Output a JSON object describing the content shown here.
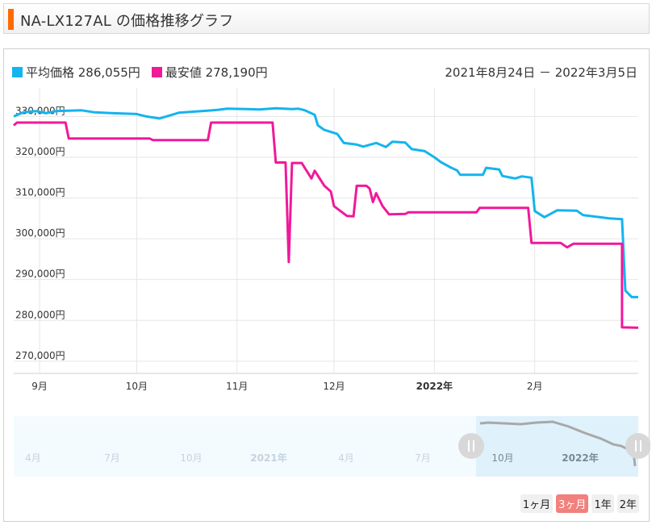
{
  "header": {
    "title": "NA-LX127AL の価格推移グラフ",
    "accent": "#ff6a00"
  },
  "legend": {
    "avg": {
      "label": "平均価格 286,055円",
      "color": "#14b4ee"
    },
    "min": {
      "label": "最安値 278,190円",
      "color": "#f0199a"
    }
  },
  "date_range": "2021年8月24日 － 2022年3月5日",
  "periods": [
    {
      "label": "1ヶ月",
      "active": false
    },
    {
      "label": "3ヶ月",
      "active": true
    },
    {
      "label": "1年",
      "active": false
    },
    {
      "label": "2年",
      "active": false
    }
  ],
  "navigator": {
    "labels": [
      "4月",
      "7月",
      "10月",
      "2021年",
      "4月",
      "7月",
      "10月",
      "2022年"
    ],
    "handle_icon": "pause-handle-icon"
  },
  "chart_data": {
    "type": "line",
    "x_start": "2021-08-24",
    "x_end": "2022-03-05",
    "ylim": [
      267000,
      337000
    ],
    "y_ticks": [
      270000,
      280000,
      290000,
      300000,
      310000,
      320000,
      330000
    ],
    "y_tick_labels": [
      "270,000円",
      "280,000円",
      "290,000円",
      "300,000円",
      "310,000円",
      "320,000円",
      "330,000円"
    ],
    "x_ticks": [
      {
        "date": "2021-09-01",
        "label": "9月",
        "bold": false
      },
      {
        "date": "2021-10-01",
        "label": "10月",
        "bold": false
      },
      {
        "date": "2021-11-01",
        "label": "11月",
        "bold": false
      },
      {
        "date": "2021-12-01",
        "label": "12月",
        "bold": false
      },
      {
        "date": "2022-01-01",
        "label": "2022年",
        "bold": true
      },
      {
        "date": "2022-02-01",
        "label": "2月",
        "bold": false
      }
    ],
    "series": [
      {
        "name": "平均価格",
        "color": "#14b4ee",
        "points": [
          [
            "2021-08-24",
            330000
          ],
          [
            "2021-08-27",
            331000
          ],
          [
            "2021-08-31",
            331300
          ],
          [
            "2021-09-03",
            330800
          ],
          [
            "2021-09-06",
            331300
          ],
          [
            "2021-09-14",
            331500
          ],
          [
            "2021-09-18",
            331000
          ],
          [
            "2021-09-24",
            330800
          ],
          [
            "2021-10-01",
            330600
          ],
          [
            "2021-10-04",
            330000
          ],
          [
            "2021-10-08",
            329500
          ],
          [
            "2021-10-11",
            330200
          ],
          [
            "2021-10-14",
            330900
          ],
          [
            "2021-10-21",
            331300
          ],
          [
            "2021-10-26",
            331600
          ],
          [
            "2021-10-29",
            331900
          ],
          [
            "2021-11-04",
            331800
          ],
          [
            "2021-11-08",
            331700
          ],
          [
            "2021-11-13",
            332000
          ],
          [
            "2021-11-18",
            331800
          ],
          [
            "2021-11-20",
            331900
          ],
          [
            "2021-11-22",
            331500
          ],
          [
            "2021-11-25",
            330400
          ],
          [
            "2021-11-26",
            327800
          ],
          [
            "2021-11-28",
            326700
          ],
          [
            "2021-12-02",
            325700
          ],
          [
            "2021-12-04",
            323500
          ],
          [
            "2021-12-08",
            323100
          ],
          [
            "2021-12-10",
            322600
          ],
          [
            "2021-12-14",
            323500
          ],
          [
            "2021-12-17",
            322500
          ],
          [
            "2021-12-19",
            323800
          ],
          [
            "2021-12-23",
            323600
          ],
          [
            "2021-12-25",
            322000
          ],
          [
            "2021-12-29",
            321500
          ],
          [
            "2022-01-01",
            320000
          ],
          [
            "2022-01-03",
            318800
          ],
          [
            "2022-01-06",
            317500
          ],
          [
            "2022-01-08",
            316800
          ],
          [
            "2022-01-09",
            315700
          ],
          [
            "2022-01-16",
            315700
          ],
          [
            "2022-01-17",
            317400
          ],
          [
            "2022-01-21",
            317000
          ],
          [
            "2022-01-22",
            315400
          ],
          [
            "2022-01-26",
            314800
          ],
          [
            "2022-01-28",
            315300
          ],
          [
            "2022-01-31",
            315000
          ],
          [
            "2022-02-01",
            306800
          ],
          [
            "2022-02-04",
            305300
          ],
          [
            "2022-02-08",
            307000
          ],
          [
            "2022-02-14",
            306900
          ],
          [
            "2022-02-16",
            305800
          ],
          [
            "2022-02-22",
            305200
          ],
          [
            "2022-02-24",
            305000
          ],
          [
            "2022-02-28",
            304800
          ],
          [
            "2022-03-01",
            287300
          ],
          [
            "2022-03-03",
            285700
          ],
          [
            "2022-03-05",
            285700
          ]
        ]
      },
      {
        "name": "最安値",
        "color": "#f0199a",
        "points": [
          [
            "2021-08-24",
            327800
          ],
          [
            "2021-08-25",
            328500
          ],
          [
            "2021-09-09",
            328500
          ],
          [
            "2021-09-10",
            324600
          ],
          [
            "2021-10-05",
            324600
          ],
          [
            "2021-10-06",
            324200
          ],
          [
            "2021-10-23",
            324200
          ],
          [
            "2021-10-24",
            328500
          ],
          [
            "2021-11-12",
            328500
          ],
          [
            "2021-11-13",
            318700
          ],
          [
            "2021-11-16",
            318700
          ],
          [
            "2021-11-17",
            294300
          ],
          [
            "2021-11-18",
            318600
          ],
          [
            "2021-11-21",
            318600
          ],
          [
            "2021-11-24",
            314800
          ],
          [
            "2021-11-25",
            316700
          ],
          [
            "2021-11-28",
            313000
          ],
          [
            "2021-11-30",
            311600
          ],
          [
            "2021-12-01",
            308000
          ],
          [
            "2021-12-05",
            305600
          ],
          [
            "2021-12-07",
            305500
          ],
          [
            "2021-12-08",
            313000
          ],
          [
            "2021-12-11",
            313000
          ],
          [
            "2021-12-12",
            312300
          ],
          [
            "2021-12-13",
            309000
          ],
          [
            "2021-12-14",
            311200
          ],
          [
            "2021-12-16",
            308000
          ],
          [
            "2021-12-18",
            306000
          ],
          [
            "2021-12-23",
            306100
          ],
          [
            "2021-12-24",
            306500
          ],
          [
            "2022-01-14",
            306500
          ],
          [
            "2022-01-15",
            307600
          ],
          [
            "2022-01-30",
            307600
          ],
          [
            "2022-01-31",
            299000
          ],
          [
            "2022-02-09",
            299000
          ],
          [
            "2022-02-11",
            297900
          ],
          [
            "2022-02-13",
            298800
          ],
          [
            "2022-02-28",
            298800
          ],
          [
            "2022-02-28",
            278300
          ],
          [
            "2022-03-05",
            278200
          ]
        ]
      }
    ]
  }
}
